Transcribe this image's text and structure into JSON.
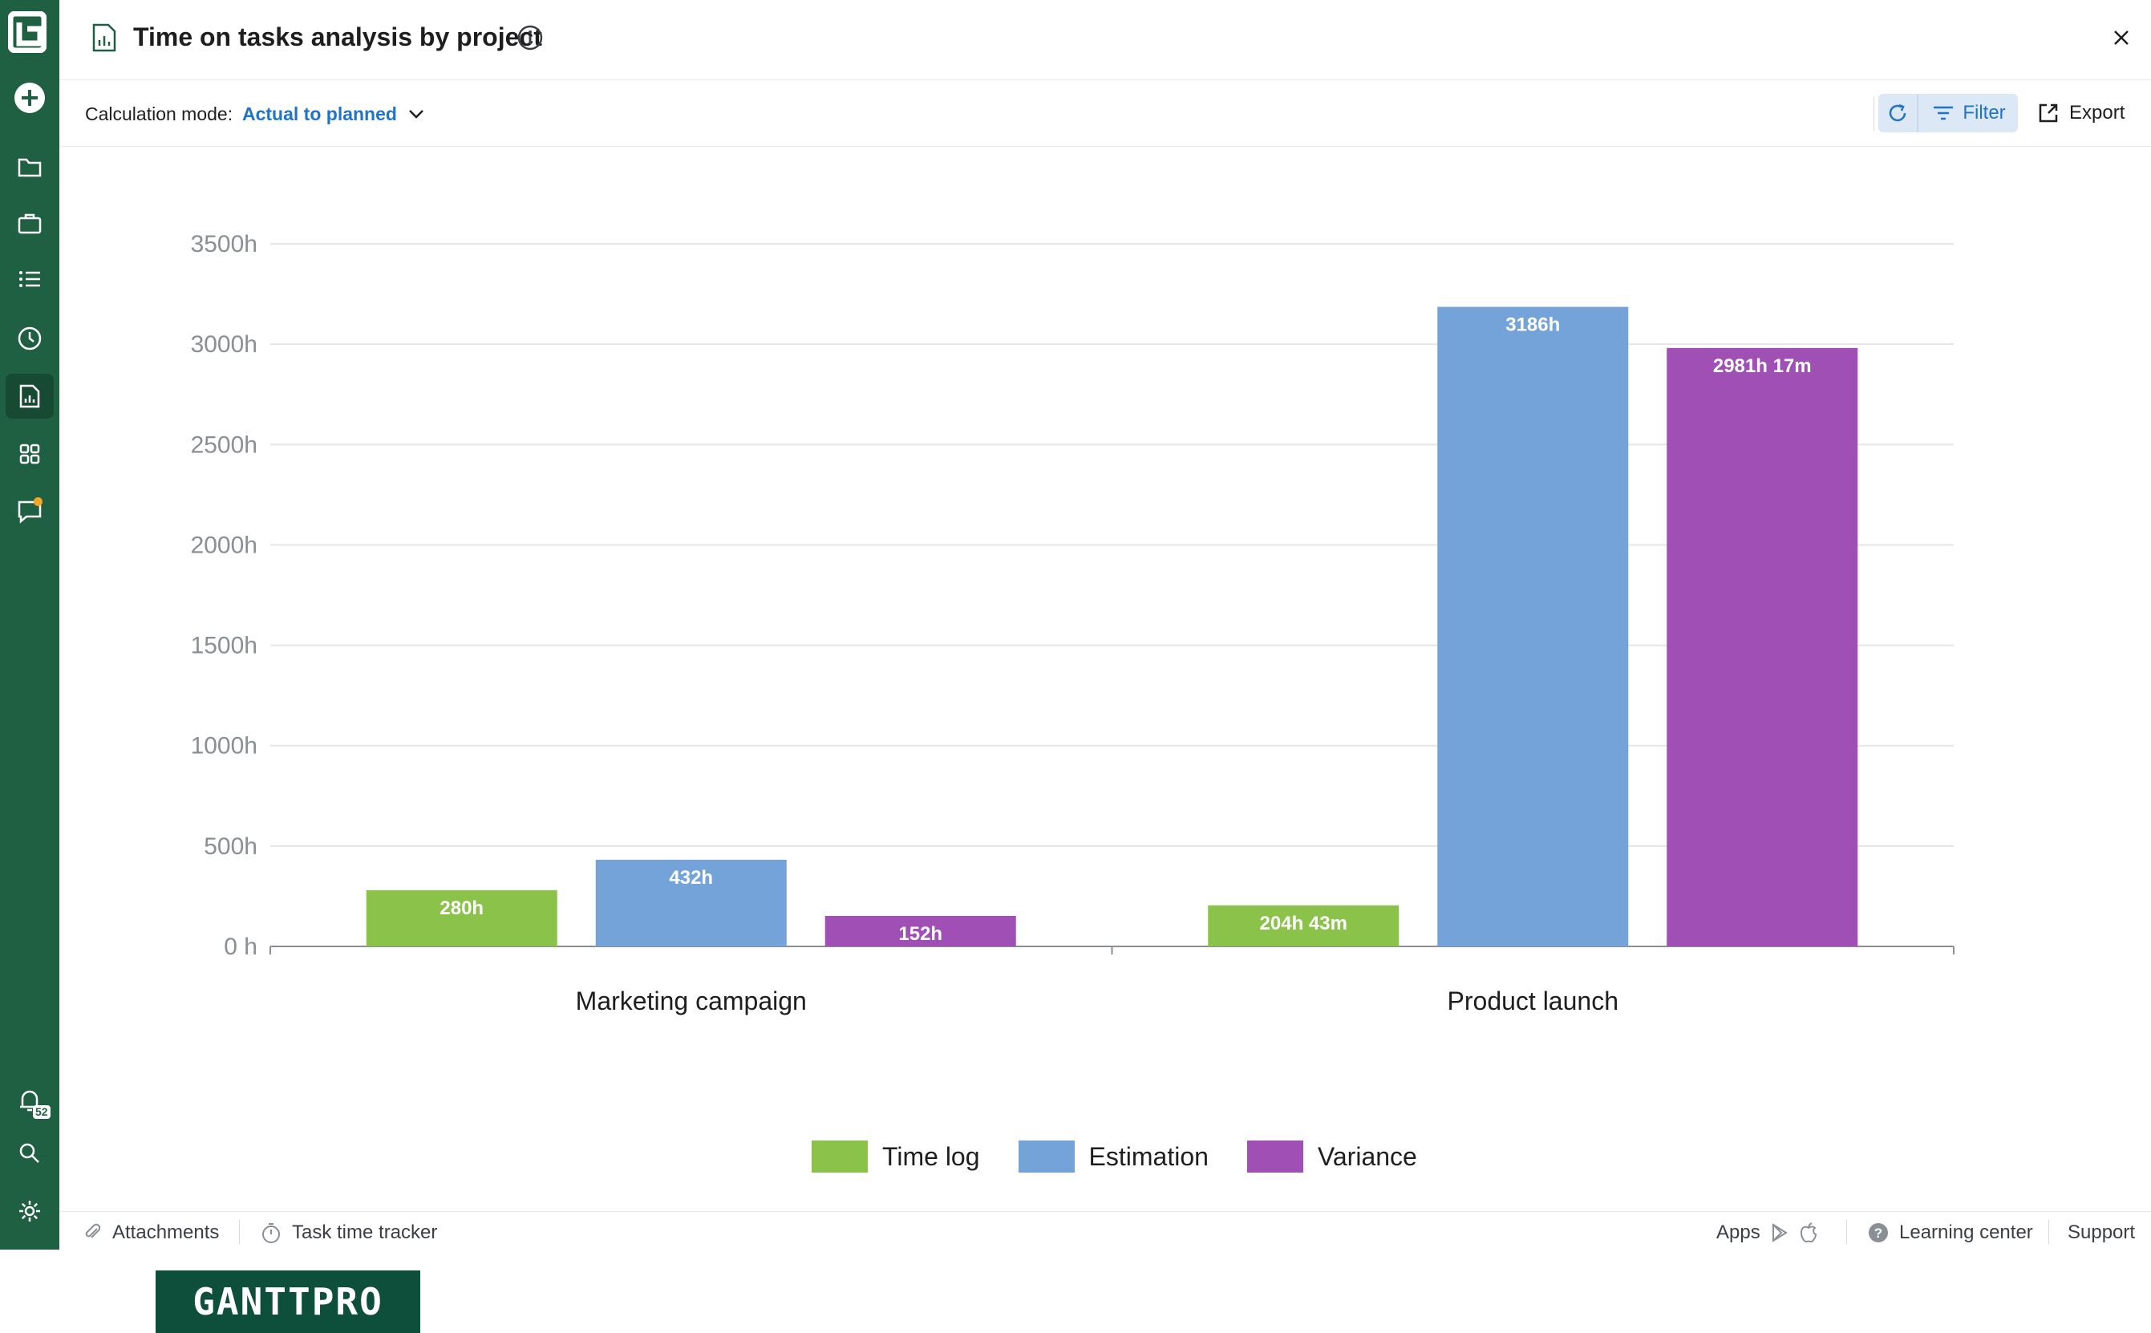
{
  "header": {
    "title": "Time on tasks analysis by project"
  },
  "toolbar": {
    "calc_label": "Calculation mode:",
    "calc_value": "Actual to planned",
    "filter_label": "Filter",
    "export_label": "Export"
  },
  "sidebar": {
    "notification_count": "52"
  },
  "brand": {
    "logo_text": "GANTTPRO"
  },
  "colors": {
    "sidebar": "#1f5f42",
    "accent": "#1f74c9",
    "time_log": "#8bc34a",
    "estimation": "#74a3d9",
    "variance": "#a04fb5"
  },
  "chart_data": {
    "type": "bar",
    "categories": [
      "Marketing campaign",
      "Product launch"
    ],
    "series": [
      {
        "name": "Time log",
        "values": [
          280,
          204.72
        ],
        "labels": [
          "280h",
          "204h 43m"
        ],
        "color": "#8bc34a"
      },
      {
        "name": "Estimation",
        "values": [
          432,
          3186
        ],
        "labels": [
          "432h",
          "3186h"
        ],
        "color": "#74a3d9"
      },
      {
        "name": "Variance",
        "values": [
          152,
          2981.28
        ],
        "labels": [
          "152h",
          "2981h 17m"
        ],
        "color": "#a04fb5"
      }
    ],
    "y_ticks": [
      "0 h",
      "500h",
      "1000h",
      "1500h",
      "2000h",
      "2500h",
      "3000h",
      "3500h"
    ],
    "ylim": [
      0,
      3500
    ],
    "grid": true,
    "legend_position": "bottom"
  },
  "footer": {
    "attachments": "Attachments",
    "time_tracker": "Task time tracker",
    "apps": "Apps",
    "learning_center": "Learning center",
    "support": "Support"
  }
}
